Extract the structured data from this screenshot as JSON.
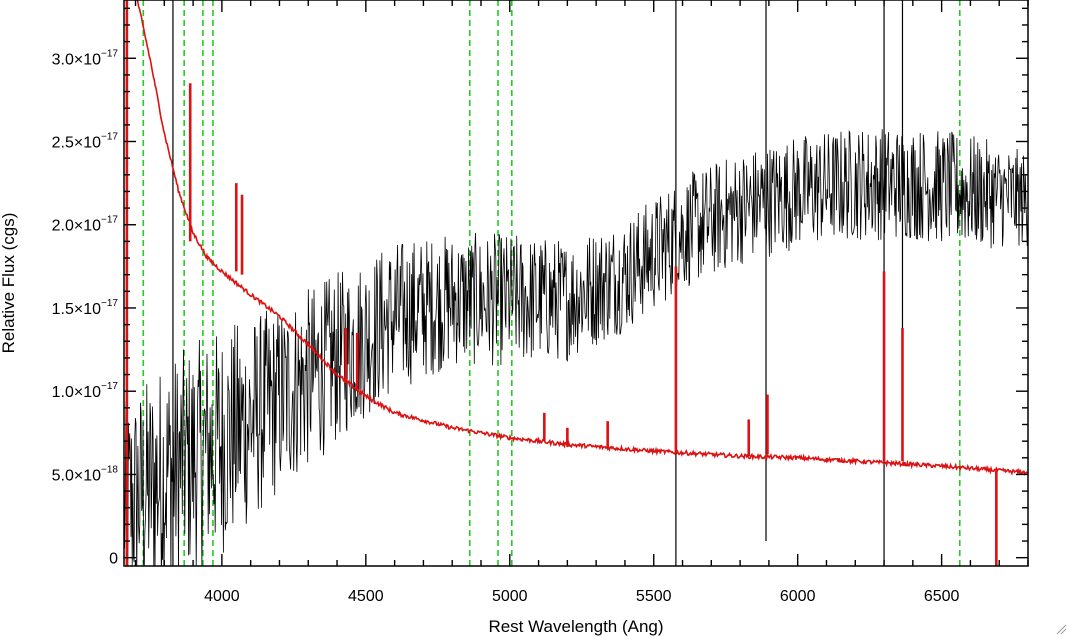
{
  "chart_data": {
    "type": "line",
    "title": "",
    "xlabel": "Rest Wavelength (Ang)",
    "ylabel": "Relative Flux (cgs)",
    "xlim": [
      3660,
      6800
    ],
    "ylim": [
      -5e-19,
      3.35e-17
    ],
    "grid": false,
    "x_ticks": [
      {
        "value": 4000,
        "label": "4000"
      },
      {
        "value": 4500,
        "label": "4500"
      },
      {
        "value": 5000,
        "label": "5000"
      },
      {
        "value": 5500,
        "label": "5500"
      },
      {
        "value": 6000,
        "label": "6000"
      },
      {
        "value": 6500,
        "label": "6500"
      }
    ],
    "y_ticks": [
      {
        "value": 0,
        "mantissa": "0",
        "exponent": ""
      },
      {
        "value": 5e-18,
        "mantissa": "5.0×10",
        "exponent": "−18"
      },
      {
        "value": 1e-17,
        "mantissa": "1.0×10",
        "exponent": "−17"
      },
      {
        "value": 1.5e-17,
        "mantissa": "1.5×10",
        "exponent": "−17"
      },
      {
        "value": 2e-17,
        "mantissa": "2.0×10",
        "exponent": "−17"
      },
      {
        "value": 2.5e-17,
        "mantissa": "2.5×10",
        "exponent": "−17"
      },
      {
        "value": 3e-17,
        "mantissa": "3.0×10",
        "exponent": "−17"
      }
    ],
    "colors": {
      "spectrum": "#000000",
      "error": "#dd1111",
      "marker": "#22cc22"
    },
    "vlines": [
      3727,
      3869,
      3934,
      3969,
      4861,
      4959,
      5007,
      6563
    ],
    "series": [
      {
        "role": "spectrum",
        "trend_x": [
          3660,
          3800,
          4000,
          4200,
          4400,
          4600,
          4800,
          5000,
          5200,
          5400,
          5600,
          5800,
          6000,
          6200,
          6400,
          6600,
          6800
        ],
        "trend_y": [
          3e-18,
          5e-18,
          7e-18,
          9.5e-18,
          1.2e-17,
          1.45e-17,
          1.55e-17,
          1.55e-17,
          1.55e-17,
          1.7e-17,
          1.95e-17,
          2.1e-17,
          2.2e-17,
          2.25e-17,
          2.25e-17,
          2.2e-17,
          2.15e-17
        ],
        "trend_noise": [
          5.5e-18,
          6e-18,
          6e-18,
          5e-18,
          4.5e-18,
          4e-18,
          3.5e-18,
          3.5e-18,
          3.2e-18,
          3e-18,
          3e-18,
          3e-18,
          3e-18,
          3e-18,
          3e-18,
          3e-18,
          2.5e-18
        ],
        "spikes": [
          {
            "x": 3830,
            "y_min": -5e-19,
            "y_max": 3.35e-17
          },
          {
            "x": 5577,
            "y_min": -5e-19,
            "y_max": 3.35e-17
          },
          {
            "x": 5890,
            "y_min": 1e-18,
            "y_max": 3.35e-17
          },
          {
            "x": 6300,
            "y_min": -5e-19,
            "y_max": 3.35e-17
          },
          {
            "x": 6364,
            "y_min": 1.2e-17,
            "y_max": 3.35e-17
          }
        ]
      },
      {
        "role": "error",
        "x": [
          3660,
          3700,
          3750,
          3800,
          3850,
          3900,
          3950,
          4000,
          4100,
          4200,
          4300,
          4400,
          4500,
          4600,
          4800,
          5000,
          5200,
          5500,
          5800,
          6000,
          6200,
          6500,
          6800
        ],
        "y": [
          3.6e-17,
          3.4e-17,
          3e-17,
          2.55e-17,
          2.2e-17,
          1.95e-17,
          1.8e-17,
          1.72e-17,
          1.58e-17,
          1.45e-17,
          1.28e-17,
          1.1e-17,
          9.7e-18,
          8.7e-18,
          7.8e-18,
          7.2e-18,
          6.8e-18,
          6.4e-18,
          6.1e-18,
          6e-18,
          5.8e-18,
          5.5e-18,
          5.1e-18
        ],
        "spikes": [
          {
            "x": 3670,
            "y_min": -5e-19,
            "y_max": 3.35e-17
          },
          {
            "x": 3890,
            "y_min": 1.9e-17,
            "y_max": 2.85e-17
          },
          {
            "x": 4050,
            "y_min": 1.72e-17,
            "y_max": 2.25e-17
          },
          {
            "x": 4070,
            "y_min": 1.7e-17,
            "y_max": 2.18e-17
          },
          {
            "x": 4430,
            "y_min": 1.05e-17,
            "y_max": 1.38e-17
          },
          {
            "x": 4470,
            "y_min": 1e-17,
            "y_max": 1.35e-17
          },
          {
            "x": 5120,
            "y_min": 7e-18,
            "y_max": 8.7e-18
          },
          {
            "x": 5200,
            "y_min": 6.8e-18,
            "y_max": 7.8e-18
          },
          {
            "x": 5340,
            "y_min": 6.6e-18,
            "y_max": 8.2e-18
          },
          {
            "x": 5577,
            "y_min": 6.3e-18,
            "y_max": 1.75e-17
          },
          {
            "x": 5830,
            "y_min": 6.1e-18,
            "y_max": 8.3e-18
          },
          {
            "x": 5895,
            "y_min": 6.2e-18,
            "y_max": 9.8e-18
          },
          {
            "x": 6300,
            "y_min": 5.8e-18,
            "y_max": 1.72e-17
          },
          {
            "x": 6364,
            "y_min": 5.8e-18,
            "y_max": 1.38e-17
          },
          {
            "x": 6690,
            "y_min": -5e-19,
            "y_max": 5.2e-18
          }
        ]
      }
    ]
  }
}
